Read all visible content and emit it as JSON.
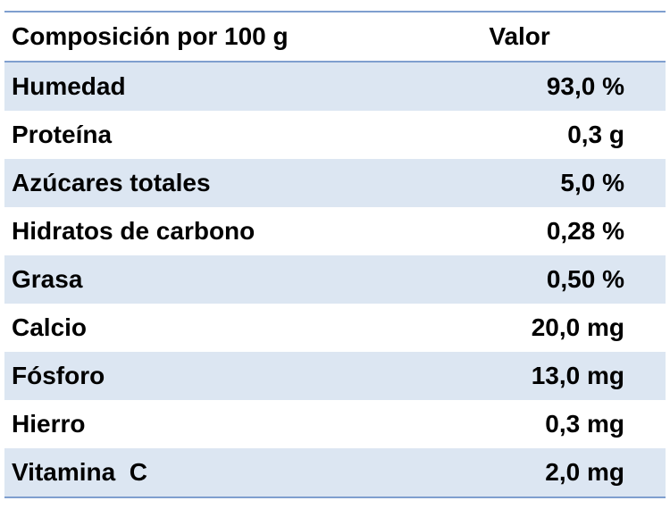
{
  "table": {
    "header": [
      "Composición por 100 g",
      "Valor"
    ],
    "rows": [
      [
        "Humedad",
        "93,0 %"
      ],
      [
        "Proteína",
        "0,3 g"
      ],
      [
        "Azúcares totales",
        "5,0 %"
      ],
      [
        "Hidratos de carbono",
        "0,28 %"
      ],
      [
        "Grasa",
        "0,50 %"
      ],
      [
        "Calcio",
        "20,0 mg"
      ],
      [
        "Fósforo",
        "13,0 mg"
      ],
      [
        "Hierro",
        "0,3 mg"
      ],
      [
        "Vitamina  C",
        "2,0 mg"
      ]
    ]
  }
}
